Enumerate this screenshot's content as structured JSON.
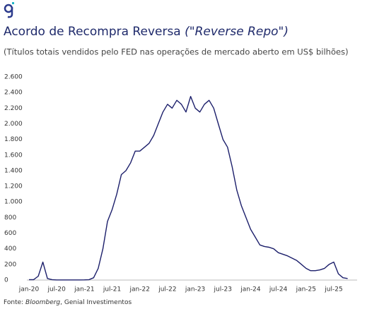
{
  "chart_data": {
    "type": "line",
    "title": "Acordo de Recompra Reversa ",
    "title_italic": "(\"Reverse Repo\")",
    "subtitle": "(Títulos totais vendidos pelo FED nas operações de mercado aberto em US$ bilhões)",
    "source_prefix": "Fonte: ",
    "source_italic": "Bloomberg",
    "source_suffix": ", Genial Investimentos",
    "categories": [
      "jan-20",
      null,
      null,
      null,
      null,
      null,
      "jul-20",
      null,
      null,
      null,
      null,
      null,
      "jan-21",
      null,
      null,
      null,
      null,
      null,
      "jul-21",
      null,
      null,
      null,
      null,
      null,
      "jan-22",
      null,
      null,
      null,
      null,
      null,
      "jul-22",
      null,
      null,
      null,
      null,
      null,
      "jan-23",
      null,
      null,
      null,
      null,
      null,
      "jul-23",
      null,
      null,
      null,
      null,
      null,
      "jan-24",
      null,
      null,
      null,
      null,
      null,
      "jul-24",
      null,
      null,
      null,
      null,
      null,
      "jan-25",
      null,
      null,
      null,
      null,
      null,
      "jul-25",
      null,
      null,
      null
    ],
    "series": [
      {
        "name": "Reverse Repo",
        "color": "#1c1f6b",
        "values": [
          5,
          5,
          50,
          230,
          20,
          5,
          2,
          2,
          2,
          2,
          2,
          2,
          3,
          5,
          30,
          150,
          400,
          750,
          900,
          1100,
          1350,
          1400,
          1500,
          1650,
          1650,
          1700,
          1750,
          1850,
          2000,
          2150,
          2250,
          2200,
          2300,
          2250,
          2150,
          2350,
          2200,
          2150,
          2250,
          2300,
          2200,
          2000,
          1800,
          1700,
          1450,
          1150,
          950,
          800,
          650,
          550,
          450,
          430,
          420,
          400,
          350,
          330,
          310,
          280,
          250,
          200,
          150,
          120,
          120,
          130,
          150,
          200,
          230,
          80,
          30,
          20
        ]
      }
    ],
    "ylim": [
      0,
      2600
    ],
    "yticks": [
      0,
      200,
      400,
      600,
      800,
      {
        "value": 1000,
        "label": "1.000"
      },
      {
        "value": 1200,
        "label": "1.200"
      },
      {
        "value": 1400,
        "label": "1.400"
      },
      {
        "value": 1600,
        "label": "1.600"
      },
      {
        "value": 1800,
        "label": "1.800"
      },
      {
        "value": 2000,
        "label": "2.000"
      },
      {
        "value": 2200,
        "label": "2.200"
      },
      {
        "value": 2400,
        "label": "2.400"
      },
      {
        "value": 2600,
        "label": "2.600"
      }
    ]
  }
}
